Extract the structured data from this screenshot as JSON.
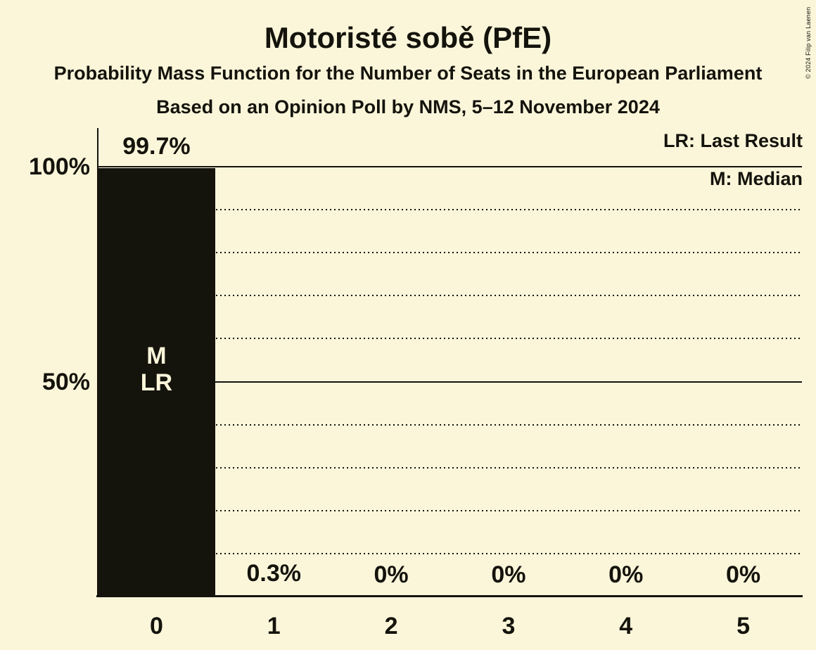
{
  "window": {
    "copyright": "© 2024 Filip van Laenen"
  },
  "header": {
    "title": "Motoristé sobě (PfE)",
    "subtitle": "Probability Mass Function for the Number of Seats in the European Parliament",
    "source_line": "Based on an Opinion Poll by NMS, 5–12 November 2024"
  },
  "legend": {
    "last_result": "LR: Last Result",
    "median": "M: Median"
  },
  "chart_data": {
    "type": "bar",
    "title": "Motoristé sobě (PfE)",
    "categories": [
      "0",
      "1",
      "2",
      "3",
      "4",
      "5"
    ],
    "values": [
      99.7,
      0.3,
      0,
      0,
      0,
      0
    ],
    "value_labels": [
      "99.7%",
      "0.3%",
      "0%",
      "0%",
      "0%",
      "0%"
    ],
    "xlabel": "",
    "ylabel": "",
    "ylim": [
      0,
      100
    ],
    "yticks": [
      {
        "value": 100,
        "label": "100%"
      },
      {
        "value": 50,
        "label": "50%"
      }
    ],
    "gridlines": {
      "solid_at": [
        100,
        50
      ],
      "dotted_at": [
        90,
        80,
        70,
        60,
        40,
        30,
        20,
        10
      ]
    },
    "legend_position": "top-right",
    "annotations": [
      {
        "category": "0",
        "lines": [
          "M",
          "LR"
        ]
      }
    ]
  },
  "colors": {
    "background": "#fbf6da",
    "ink": "#14130c",
    "bar": "#14130c",
    "bar_annotation_text": "#fbf6da"
  }
}
